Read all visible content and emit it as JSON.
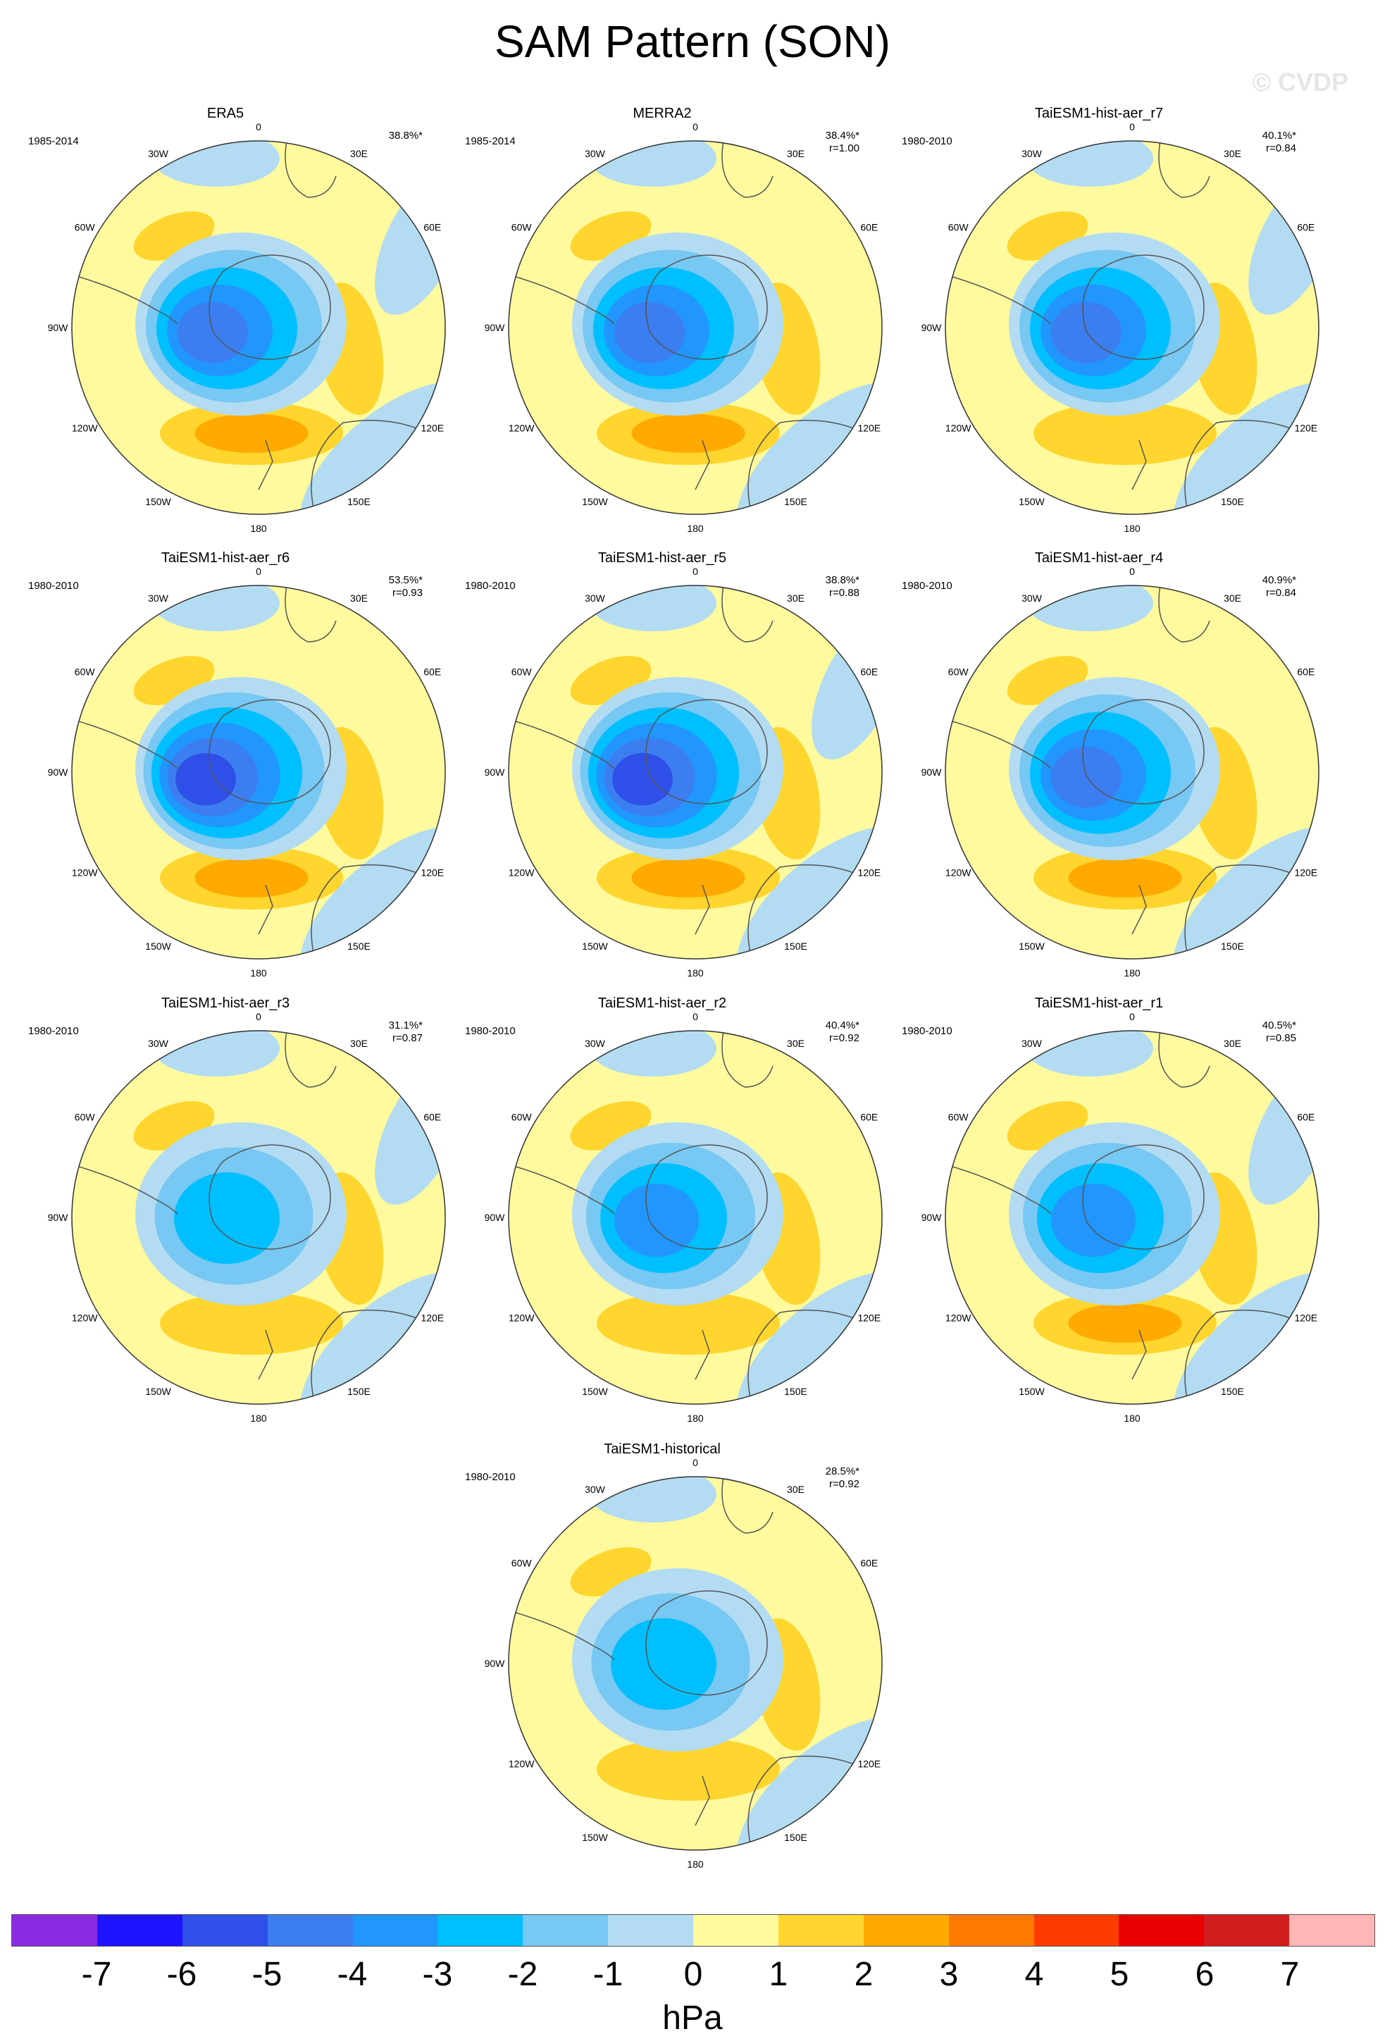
{
  "title": "SAM Pattern (SON)",
  "watermark": "© CVDP",
  "colors": {
    "levels": [
      "#8A2BE2",
      "#1E14FF",
      "#2E4FE8",
      "#3C7EEF",
      "#2196FF",
      "#00BFFF",
      "#77C8F2",
      "#B3DCF2",
      "#FFFA9E",
      "#FFD52E",
      "#FFAA00",
      "#FF7A00",
      "#FF3C00",
      "#EB0000",
      "#D21E1E",
      "#FFB6B6"
    ],
    "coast": "#555555",
    "rim": "#333333"
  },
  "chart_data": {
    "type": "polar contour map",
    "colorbar": {
      "ticks": [
        "-7",
        "-6",
        "-5",
        "-4",
        "-3",
        "-2",
        "-1",
        "0",
        "1",
        "2",
        "3",
        "4",
        "5",
        "6",
        "7"
      ],
      "unit": "hPa"
    },
    "longitude_labels": [
      "0",
      "30E",
      "60E",
      "90E",
      "120E",
      "150E",
      "180",
      "150W",
      "120W",
      "90W",
      "60W",
      "30W"
    ],
    "panels": [
      {
        "title": "ERA5",
        "period": "1985-2014",
        "variance": "38.8%*",
        "r": "",
        "min_hpa": -5,
        "max_hpa": 2
      },
      {
        "title": "MERRA2",
        "period": "1985-2014",
        "variance": "38.4%*",
        "r": "r=1.00",
        "min_hpa": -5,
        "max_hpa": 2
      },
      {
        "title": "TaiESM1-hist-aer_r7",
        "period": "1980-2010",
        "variance": "40.1%*",
        "r": "r=0.84",
        "min_hpa": -5,
        "max_hpa": 1
      },
      {
        "title": "TaiESM1-hist-aer_r6",
        "period": "1980-2010",
        "variance": "53.5%*",
        "r": "r=0.93",
        "min_hpa": -6,
        "max_hpa": 2
      },
      {
        "title": "TaiESM1-hist-aer_r5",
        "period": "1980-2010",
        "variance": "38.8%*",
        "r": "r=0.88",
        "min_hpa": -6,
        "max_hpa": 2
      },
      {
        "title": "TaiESM1-hist-aer_r4",
        "period": "1980-2010",
        "variance": "40.9%*",
        "r": "r=0.84",
        "min_hpa": -5,
        "max_hpa": 2
      },
      {
        "title": "TaiESM1-hist-aer_r3",
        "period": "1980-2010",
        "variance": "31.1%*",
        "r": "r=0.87",
        "min_hpa": -3,
        "max_hpa": 1
      },
      {
        "title": "TaiESM1-hist-aer_r2",
        "period": "1980-2010",
        "variance": "40.4%*",
        "r": "r=0.92",
        "min_hpa": -4,
        "max_hpa": 1
      },
      {
        "title": "TaiESM1-hist-aer_r1",
        "period": "1980-2010",
        "variance": "40.5%*",
        "r": "r=0.85",
        "min_hpa": -4,
        "max_hpa": 2
      },
      {
        "title": "TaiESM1-historical",
        "period": "1980-2010",
        "variance": "28.5%*",
        "r": "r=0.92",
        "min_hpa": -3,
        "max_hpa": 1
      }
    ]
  }
}
